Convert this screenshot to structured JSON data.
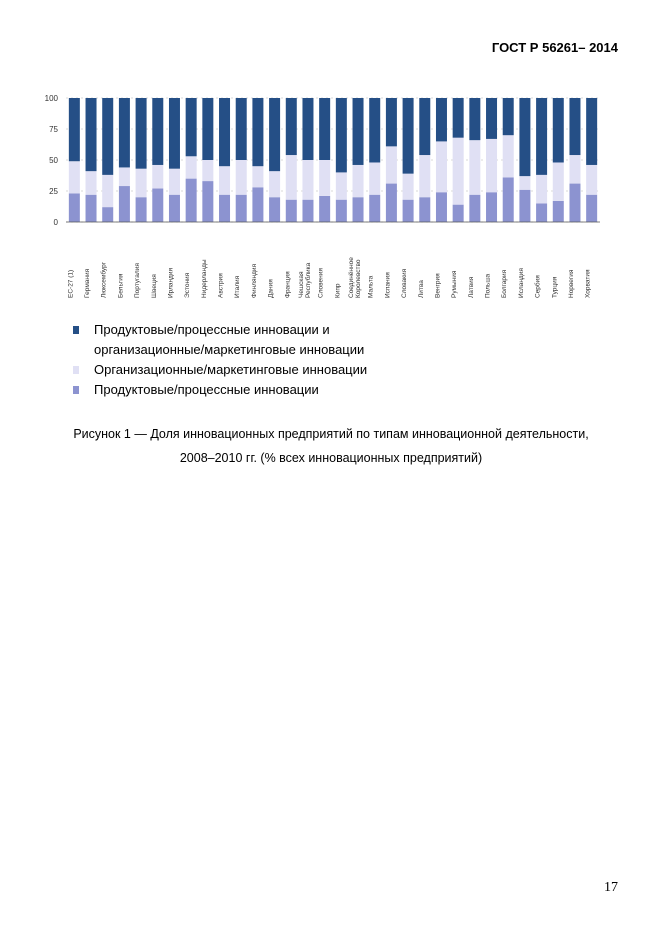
{
  "header": {
    "standard": "ГОСТ Р  56261– 2014"
  },
  "chart_data": {
    "type": "bar",
    "stacked": true,
    "ylim": [
      0,
      100
    ],
    "yticks": [
      0,
      25,
      50,
      75,
      100
    ],
    "grid": true,
    "categories": [
      "ЕС-27 (1)",
      "Германия",
      "Люксембург",
      "Бельгия",
      "Португалия",
      "Швеция",
      "Ирландия",
      "Эстония",
      "Нидерланды",
      "Австрия",
      "Италия",
      "Финляндия",
      "Дания",
      "Франция",
      "Чешская Республика",
      "Словения",
      "Кипр",
      "Соединённое Королевство",
      "Мальта",
      "Испания",
      "Словакия",
      "Литва",
      "Венгрия",
      "Румыния",
      "Латвия",
      "Польша",
      "Болгария",
      "Исландия",
      "Сербия",
      "Турция",
      "Норвегия",
      "Хорватия"
    ],
    "series": [
      {
        "name": "Продуктовые/процессные инновации",
        "color": "#8c93d0",
        "values": [
          23,
          22,
          12,
          29,
          20,
          27,
          22,
          35,
          33,
          22,
          22,
          28,
          20,
          18,
          18,
          21,
          18,
          20,
          22,
          31,
          18,
          20,
          24,
          14,
          22,
          24,
          36,
          26,
          15,
          17,
          31,
          22
        ]
      },
      {
        "name": "Организационные/маркетинговые инновации",
        "color": "#e0e0f4",
        "values": [
          26,
          19,
          26,
          15,
          23,
          19,
          21,
          18,
          17,
          23,
          28,
          17,
          21,
          36,
          32,
          29,
          22,
          26,
          26,
          30,
          21,
          34,
          41,
          54,
          44,
          43,
          34,
          11,
          23,
          31,
          23,
          24
        ]
      },
      {
        "name": "Продуктовые/процессные инновации и организационные/маркетинговые инновации",
        "color": "#254f86",
        "values": [
          51,
          59,
          62,
          56,
          57,
          54,
          57,
          47,
          50,
          55,
          50,
          55,
          59,
          46,
          50,
          50,
          60,
          54,
          52,
          39,
          61,
          46,
          35,
          32,
          34,
          33,
          30,
          63,
          62,
          52,
          46,
          54
        ]
      }
    ]
  },
  "legend": {
    "items": [
      "Продуктовые/процессные инновации и организационные/маркетинговые инновации",
      "Организационные/маркетинговые инновации",
      "Продуктовые/процессные инновации"
    ]
  },
  "caption": {
    "line1": "Рисунок 1 — Доля инновационных предприятий по типам инновационной деятельности,",
    "line2": "2008–2010 гг. (% всех инновационных предприятий)"
  },
  "page_number": "17"
}
